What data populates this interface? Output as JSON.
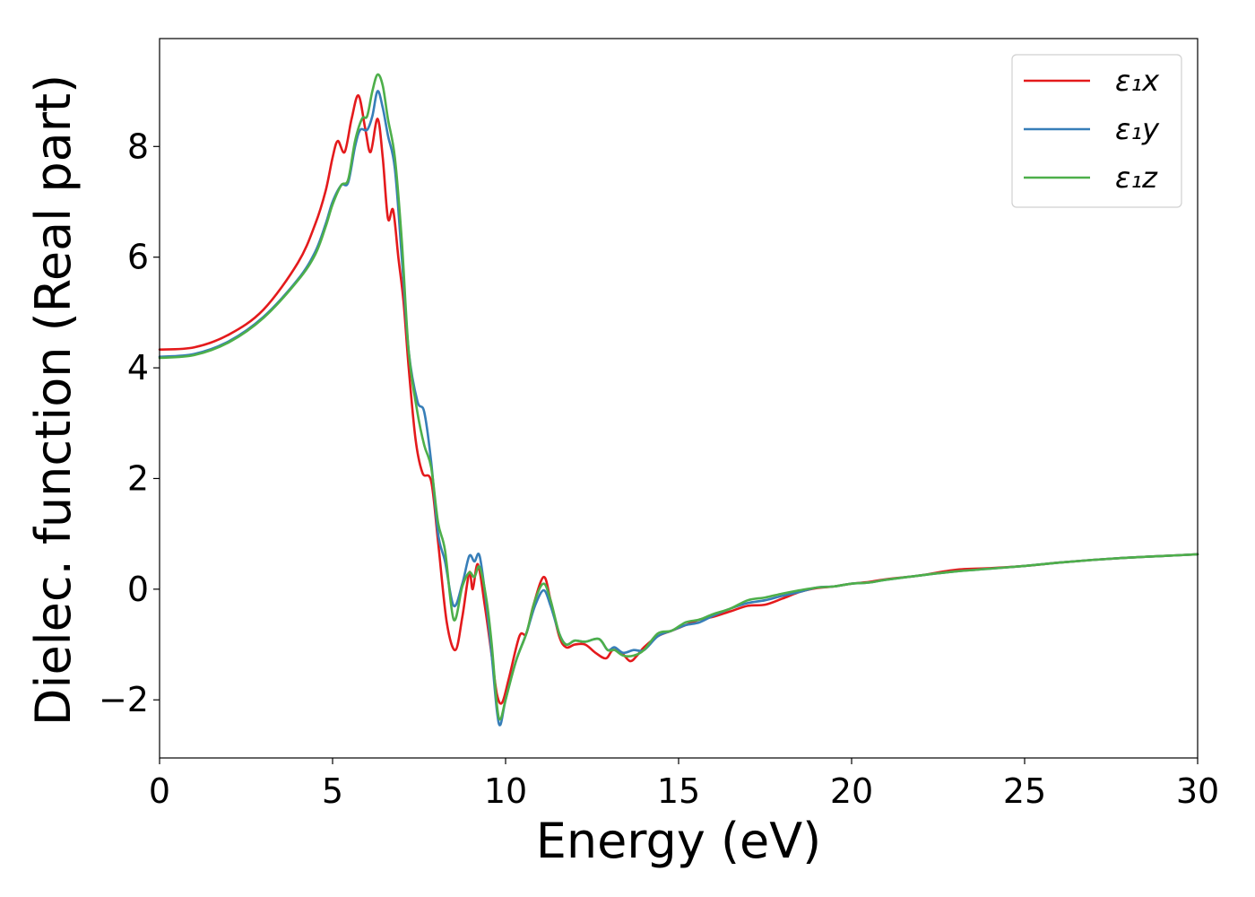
{
  "chart_data": {
    "type": "line",
    "xlabel": "Energy (eV)",
    "ylabel": "Dielec. function (Real part)",
    "xlim": [
      0,
      30
    ],
    "ylim": [
      -3.05,
      9.95
    ],
    "grid": false,
    "legend_position": "top-right",
    "x_ticks": [
      0,
      5,
      10,
      15,
      20,
      25,
      30
    ],
    "x_tick_labels": [
      "0",
      "5",
      "10",
      "15",
      "20",
      "25",
      "30"
    ],
    "y_ticks": [
      -2,
      0,
      2,
      4,
      6,
      8
    ],
    "y_tick_labels": [
      "−2",
      "0",
      "2",
      "4",
      "6",
      "8"
    ],
    "series": [
      {
        "name": "ε₁x",
        "color": "#e41a1c",
        "points": [
          [
            0,
            4.33
          ],
          [
            1,
            4.37
          ],
          [
            2,
            4.6
          ],
          [
            3,
            5.05
          ],
          [
            4,
            5.9
          ],
          [
            4.5,
            6.6
          ],
          [
            4.8,
            7.2
          ],
          [
            5.0,
            7.8
          ],
          [
            5.15,
            8.1
          ],
          [
            5.35,
            7.9
          ],
          [
            5.55,
            8.5
          ],
          [
            5.75,
            8.92
          ],
          [
            5.95,
            8.3
          ],
          [
            6.1,
            7.9
          ],
          [
            6.3,
            8.5
          ],
          [
            6.45,
            7.8
          ],
          [
            6.6,
            6.7
          ],
          [
            6.75,
            6.85
          ],
          [
            6.9,
            6.0
          ],
          [
            7.05,
            5.2
          ],
          [
            7.2,
            4.0
          ],
          [
            7.4,
            2.7
          ],
          [
            7.6,
            2.1
          ],
          [
            7.85,
            1.95
          ],
          [
            8.05,
            0.85
          ],
          [
            8.3,
            -0.6
          ],
          [
            8.55,
            -1.1
          ],
          [
            8.75,
            -0.5
          ],
          [
            8.95,
            0.3
          ],
          [
            9.05,
            0.0
          ],
          [
            9.2,
            0.45
          ],
          [
            9.4,
            -0.3
          ],
          [
            9.6,
            -1.2
          ],
          [
            9.75,
            -1.9
          ],
          [
            9.9,
            -2.05
          ],
          [
            10.1,
            -1.6
          ],
          [
            10.4,
            -0.85
          ],
          [
            10.6,
            -0.8
          ],
          [
            10.8,
            -0.3
          ],
          [
            11.1,
            0.22
          ],
          [
            11.3,
            -0.2
          ],
          [
            11.55,
            -0.85
          ],
          [
            11.75,
            -1.05
          ],
          [
            12.0,
            -1.0
          ],
          [
            12.3,
            -1.0
          ],
          [
            12.6,
            -1.15
          ],
          [
            12.9,
            -1.25
          ],
          [
            13.1,
            -1.1
          ],
          [
            13.35,
            -1.15
          ],
          [
            13.6,
            -1.3
          ],
          [
            13.8,
            -1.2
          ],
          [
            14.0,
            -1.05
          ],
          [
            14.4,
            -0.85
          ],
          [
            14.8,
            -0.75
          ],
          [
            15.2,
            -0.65
          ],
          [
            15.6,
            -0.55
          ],
          [
            16.0,
            -0.5
          ],
          [
            16.5,
            -0.4
          ],
          [
            17.0,
            -0.3
          ],
          [
            17.5,
            -0.28
          ],
          [
            18.0,
            -0.17
          ],
          [
            18.5,
            -0.05
          ],
          [
            19.0,
            0.02
          ],
          [
            19.5,
            0.05
          ],
          [
            20.0,
            0.1
          ],
          [
            20.5,
            0.13
          ],
          [
            21.0,
            0.18
          ],
          [
            22.0,
            0.25
          ],
          [
            23.0,
            0.35
          ],
          [
            24.0,
            0.38
          ],
          [
            25.0,
            0.42
          ],
          [
            26.0,
            0.48
          ],
          [
            27.0,
            0.53
          ],
          [
            28.0,
            0.57
          ],
          [
            29.0,
            0.6
          ],
          [
            30.0,
            0.63
          ]
        ]
      },
      {
        "name": "ε₁y",
        "color": "#377eb8",
        "points": [
          [
            0,
            4.2
          ],
          [
            1,
            4.25
          ],
          [
            2,
            4.48
          ],
          [
            3,
            4.92
          ],
          [
            4,
            5.6
          ],
          [
            4.5,
            6.1
          ],
          [
            4.8,
            6.6
          ],
          [
            5.0,
            7.0
          ],
          [
            5.25,
            7.3
          ],
          [
            5.45,
            7.35
          ],
          [
            5.65,
            8.0
          ],
          [
            5.8,
            8.3
          ],
          [
            6.0,
            8.3
          ],
          [
            6.15,
            8.55
          ],
          [
            6.3,
            9.0
          ],
          [
            6.45,
            8.7
          ],
          [
            6.6,
            8.2
          ],
          [
            6.8,
            7.6
          ],
          [
            7.0,
            6.0
          ],
          [
            7.2,
            4.3
          ],
          [
            7.45,
            3.4
          ],
          [
            7.65,
            3.2
          ],
          [
            7.85,
            2.3
          ],
          [
            8.05,
            1.0
          ],
          [
            8.25,
            0.5
          ],
          [
            8.5,
            -0.3
          ],
          [
            8.75,
            0.1
          ],
          [
            8.95,
            0.6
          ],
          [
            9.1,
            0.5
          ],
          [
            9.25,
            0.6
          ],
          [
            9.45,
            -0.3
          ],
          [
            9.6,
            -1.2
          ],
          [
            9.75,
            -2.2
          ],
          [
            9.85,
            -2.45
          ],
          [
            10.0,
            -2.0
          ],
          [
            10.3,
            -1.3
          ],
          [
            10.6,
            -0.8
          ],
          [
            10.85,
            -0.3
          ],
          [
            11.1,
            -0.02
          ],
          [
            11.3,
            -0.3
          ],
          [
            11.55,
            -0.8
          ],
          [
            11.75,
            -1.0
          ],
          [
            12.0,
            -0.93
          ],
          [
            12.3,
            -0.95
          ],
          [
            12.7,
            -0.9
          ],
          [
            12.95,
            -1.1
          ],
          [
            13.15,
            -1.05
          ],
          [
            13.4,
            -1.15
          ],
          [
            13.7,
            -1.1
          ],
          [
            14.0,
            -1.1
          ],
          [
            14.4,
            -0.85
          ],
          [
            14.8,
            -0.75
          ],
          [
            15.2,
            -0.65
          ],
          [
            15.6,
            -0.6
          ],
          [
            16.0,
            -0.48
          ],
          [
            16.5,
            -0.35
          ],
          [
            17.0,
            -0.25
          ],
          [
            17.5,
            -0.2
          ],
          [
            18.0,
            -0.12
          ],
          [
            18.5,
            -0.05
          ],
          [
            19.0,
            0.03
          ],
          [
            19.5,
            0.05
          ],
          [
            20.0,
            0.1
          ],
          [
            20.5,
            0.12
          ],
          [
            21.0,
            0.17
          ],
          [
            22.0,
            0.25
          ],
          [
            23.0,
            0.32
          ],
          [
            24.0,
            0.37
          ],
          [
            25.0,
            0.42
          ],
          [
            26.0,
            0.48
          ],
          [
            27.0,
            0.53
          ],
          [
            28.0,
            0.57
          ],
          [
            29.0,
            0.6
          ],
          [
            30.0,
            0.63
          ]
        ]
      },
      {
        "name": "ε₁z",
        "color": "#4daf4a",
        "points": [
          [
            0,
            4.18
          ],
          [
            1,
            4.23
          ],
          [
            2,
            4.46
          ],
          [
            3,
            4.9
          ],
          [
            4,
            5.58
          ],
          [
            4.5,
            6.05
          ],
          [
            4.8,
            6.55
          ],
          [
            5.0,
            6.95
          ],
          [
            5.25,
            7.3
          ],
          [
            5.45,
            7.4
          ],
          [
            5.65,
            8.1
          ],
          [
            5.85,
            8.5
          ],
          [
            6.0,
            8.55
          ],
          [
            6.15,
            9.0
          ],
          [
            6.3,
            9.3
          ],
          [
            6.45,
            9.1
          ],
          [
            6.6,
            8.5
          ],
          [
            6.8,
            7.8
          ],
          [
            7.0,
            6.3
          ],
          [
            7.2,
            4.3
          ],
          [
            7.45,
            3.2
          ],
          [
            7.65,
            2.6
          ],
          [
            7.85,
            2.2
          ],
          [
            8.05,
            1.2
          ],
          [
            8.25,
            0.7
          ],
          [
            8.5,
            -0.55
          ],
          [
            8.75,
            0.05
          ],
          [
            8.95,
            0.3
          ],
          [
            9.1,
            0.22
          ],
          [
            9.25,
            0.4
          ],
          [
            9.45,
            -0.2
          ],
          [
            9.6,
            -1.0
          ],
          [
            9.75,
            -2.1
          ],
          [
            9.85,
            -2.35
          ],
          [
            10.0,
            -2.0
          ],
          [
            10.3,
            -1.3
          ],
          [
            10.6,
            -0.8
          ],
          [
            10.85,
            -0.2
          ],
          [
            11.1,
            0.1
          ],
          [
            11.3,
            -0.2
          ],
          [
            11.55,
            -0.8
          ],
          [
            11.75,
            -1.0
          ],
          [
            12.0,
            -0.93
          ],
          [
            12.3,
            -0.95
          ],
          [
            12.7,
            -0.9
          ],
          [
            12.95,
            -1.1
          ],
          [
            13.15,
            -1.1
          ],
          [
            13.4,
            -1.2
          ],
          [
            13.7,
            -1.2
          ],
          [
            14.0,
            -1.1
          ],
          [
            14.4,
            -0.8
          ],
          [
            14.8,
            -0.75
          ],
          [
            15.2,
            -0.6
          ],
          [
            15.6,
            -0.55
          ],
          [
            16.0,
            -0.45
          ],
          [
            16.5,
            -0.35
          ],
          [
            17.0,
            -0.2
          ],
          [
            17.5,
            -0.15
          ],
          [
            18.0,
            -0.08
          ],
          [
            18.5,
            -0.02
          ],
          [
            19.0,
            0.03
          ],
          [
            19.5,
            0.05
          ],
          [
            20.0,
            0.1
          ],
          [
            20.5,
            0.12
          ],
          [
            21.0,
            0.17
          ],
          [
            22.0,
            0.25
          ],
          [
            23.0,
            0.32
          ],
          [
            24.0,
            0.37
          ],
          [
            25.0,
            0.42
          ],
          [
            26.0,
            0.48
          ],
          [
            27.0,
            0.53
          ],
          [
            28.0,
            0.57
          ],
          [
            29.0,
            0.6
          ],
          [
            30.0,
            0.63
          ]
        ]
      }
    ]
  }
}
